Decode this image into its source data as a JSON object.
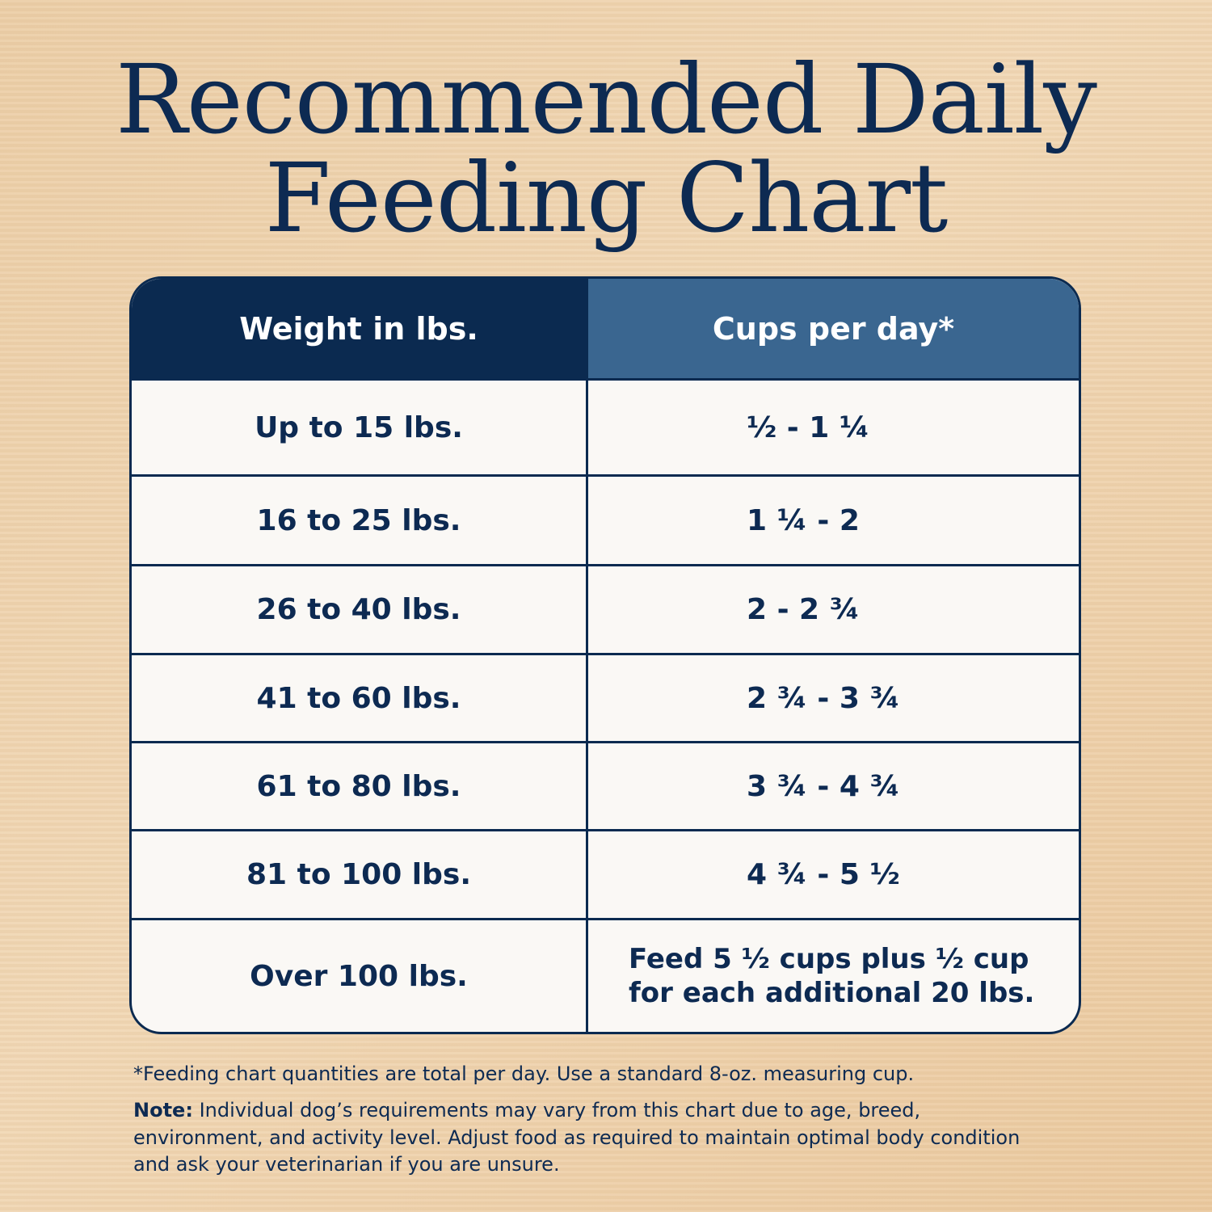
{
  "header": {
    "title_lines": [
      "Recommended Daily",
      "Feeding Chart"
    ]
  },
  "table": {
    "columns": [
      "Weight in lbs.",
      "Cups per day*"
    ],
    "rows": [
      [
        "Up to 15 lbs.",
        "½ - 1 ¼"
      ],
      [
        "16 to 25 lbs.",
        "1 ¼ - 2"
      ],
      [
        "26 to 40 lbs.",
        "2 - 2 ¾"
      ],
      [
        "41 to 60 lbs.",
        "2 ¾ - 3 ¾"
      ],
      [
        "61 to 80 lbs.",
        "3 ¾ - 4 ¾"
      ],
      [
        "81 to 100 lbs.",
        "4 ¾ - 5 ½"
      ],
      [
        "Over 100 lbs.",
        "Feed 5 ½ cups plus ½ cup for each additional 20 lbs."
      ]
    ]
  },
  "footnote": "*Feeding chart quantities are total per day. Use a standard 8-oz. measuring cup.",
  "note": {
    "label": "Note:",
    "text": "Individual dog’s requirements may vary from this chart due to age, breed, environment, and activity level. Adjust food as required to maintain optimal body condition and ask your veterinarian if you are unsure."
  }
}
